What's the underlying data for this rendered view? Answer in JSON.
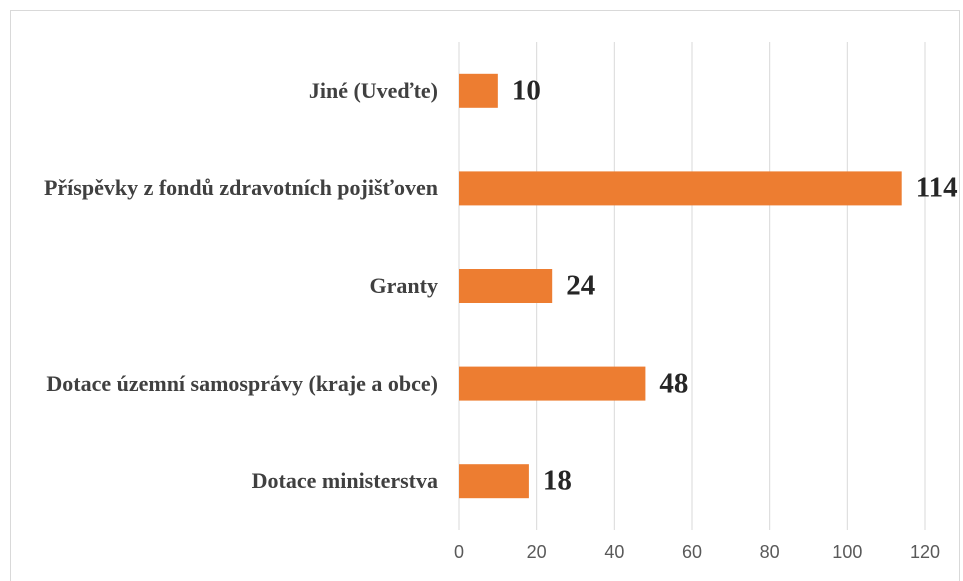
{
  "chart_data": {
    "type": "bar",
    "orientation": "horizontal",
    "categories": [
      "Jiné (Uveďte)",
      "Příspěvky z fondů zdravotních pojišťoven",
      "Granty",
      "Dotace územní samosprávy (kraje a obce)",
      "Dotace ministerstva"
    ],
    "values": [
      10,
      114,
      24,
      48,
      18
    ],
    "color": "#ed7d31",
    "xlim": [
      0,
      120
    ],
    "xticks": [
      0,
      20,
      40,
      60,
      80,
      100,
      120
    ],
    "grid": true
  }
}
